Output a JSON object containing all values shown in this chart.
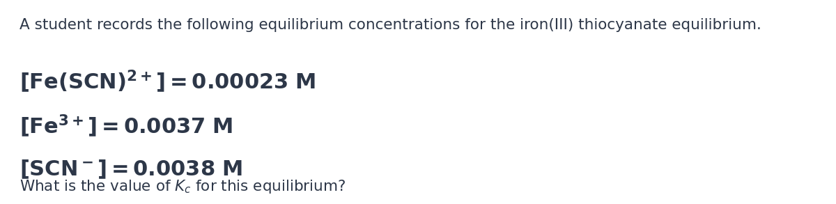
{
  "background_color": "#ffffff",
  "text_color": "#2d3748",
  "title_text": "A student records the following equilibrium concentrations for the iron(III) thiocyanate equilibrium.",
  "title_fontsize": 15.5,
  "conc_fontsize": 22,
  "question_fontsize": 15.5,
  "figsize": [
    12.0,
    2.93
  ],
  "dpi": 100
}
